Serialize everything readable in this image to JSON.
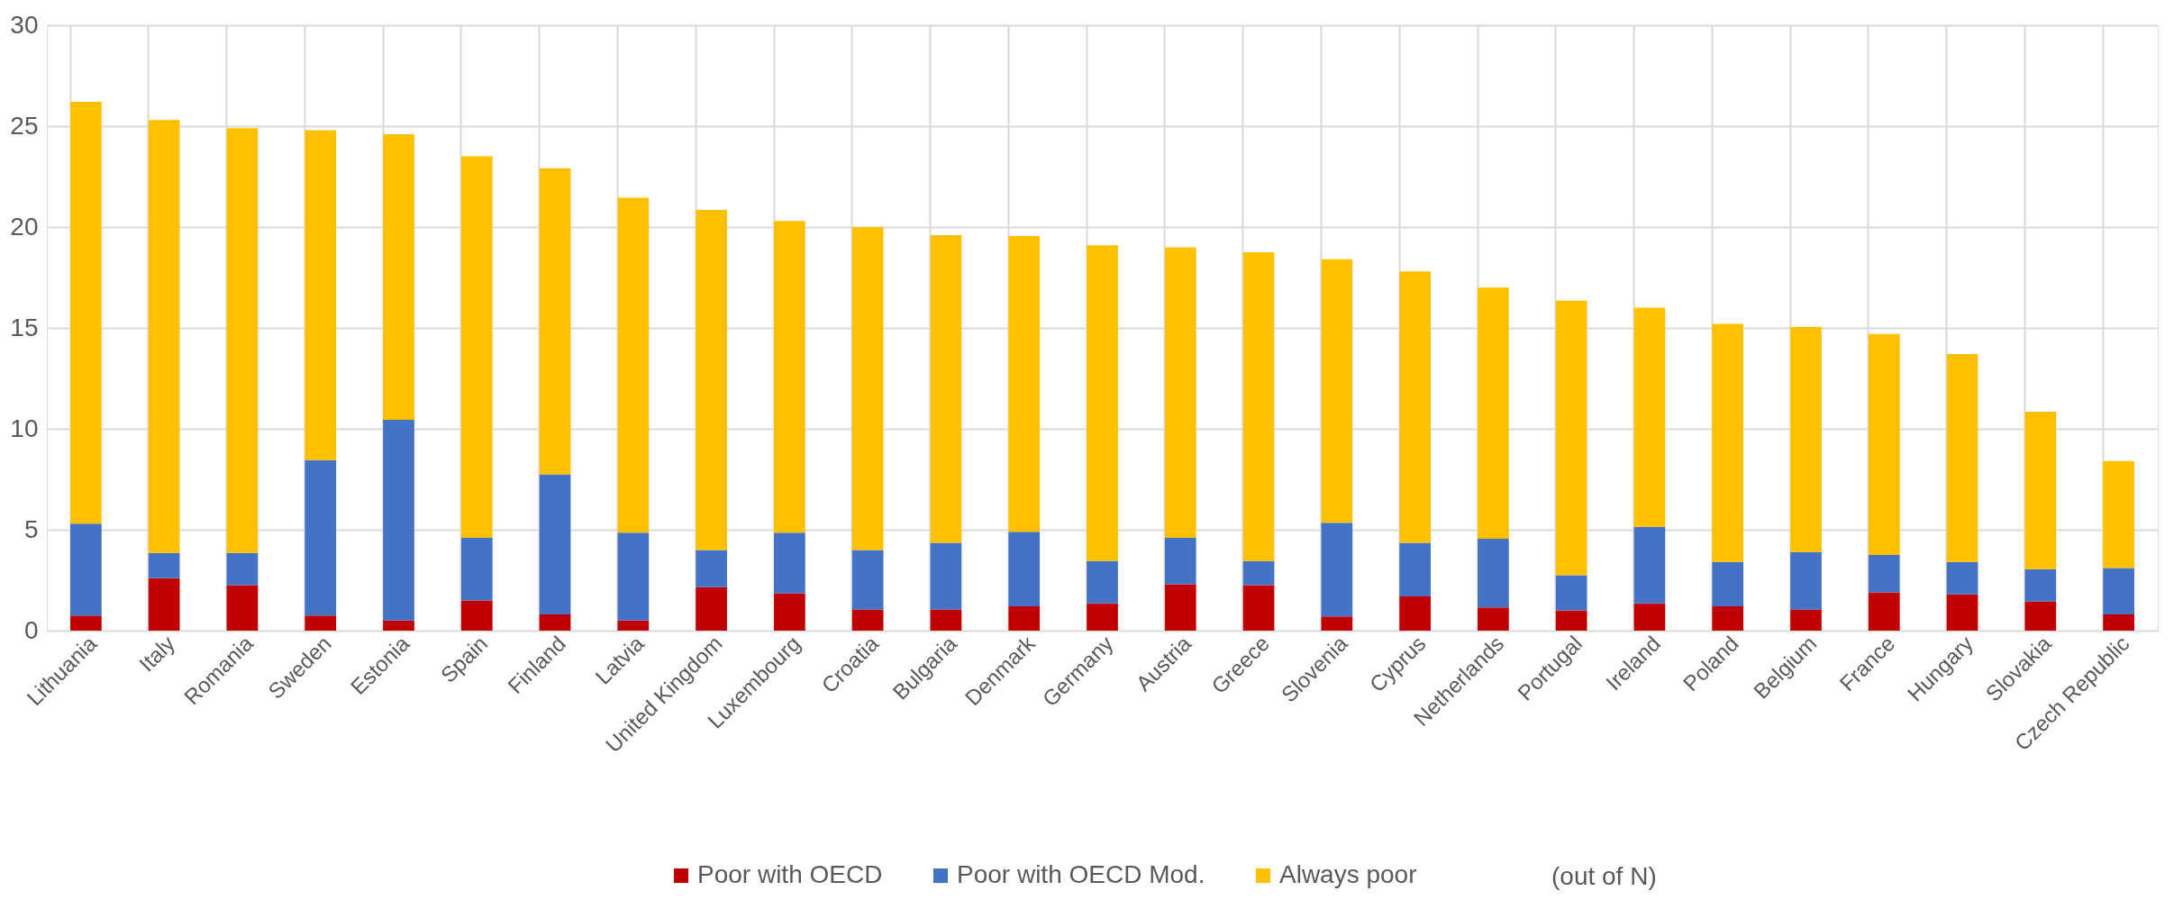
{
  "chart_data": {
    "type": "bar",
    "stacked": true,
    "categories": [
      "Lithuania",
      "Italy",
      "Romania",
      "Sweden",
      "Estonia",
      "Spain",
      "Finland",
      "Latvia",
      "United Kingdom",
      "Luxembourg",
      "Croatia",
      "Bulgaria",
      "Denmark",
      "Germany",
      "Austria",
      "Greece",
      "Slovenia",
      "Cyprus",
      "Netherlands",
      "Portugal",
      "Ireland",
      "Poland",
      "Belgium",
      "France",
      "Hungary",
      "Slovakia",
      "Czech Republic"
    ],
    "series": [
      {
        "name": "Poor with OECD",
        "color": "#c00000",
        "values": [
          0.75,
          2.6,
          2.25,
          0.75,
          0.5,
          1.5,
          0.8,
          0.5,
          2.15,
          1.85,
          1.05,
          1.05,
          1.2,
          1.35,
          2.3,
          2.25,
          0.7,
          1.7,
          1.15,
          1.0,
          1.35,
          1.2,
          1.05,
          1.9,
          1.8,
          1.45,
          0.8
        ]
      },
      {
        "name": "Poor with OECD Mod.",
        "color": "#4472c4",
        "values": [
          4.55,
          1.25,
          1.6,
          7.7,
          9.95,
          3.1,
          6.95,
          4.35,
          1.85,
          3.0,
          2.95,
          3.3,
          3.7,
          2.1,
          2.3,
          1.2,
          4.65,
          2.65,
          3.4,
          1.75,
          3.8,
          2.2,
          2.85,
          1.85,
          1.6,
          1.6,
          2.3
        ]
      },
      {
        "name": "Always poor",
        "color": "#ffc000",
        "values": [
          20.9,
          21.45,
          21.05,
          16.35,
          14.15,
          18.9,
          15.15,
          16.6,
          16.85,
          15.45,
          16.0,
          15.25,
          14.65,
          15.65,
          14.4,
          15.3,
          13.05,
          13.45,
          12.45,
          13.6,
          10.85,
          11.8,
          11.15,
          10.95,
          10.3,
          7.8,
          5.3
        ]
      }
    ],
    "ylim": [
      0,
      30
    ],
    "yticks": [
      0,
      5,
      10,
      15,
      20,
      25,
      30
    ],
    "grid": true,
    "legend": "bottom",
    "annotations": [
      "(out of N)"
    ]
  }
}
